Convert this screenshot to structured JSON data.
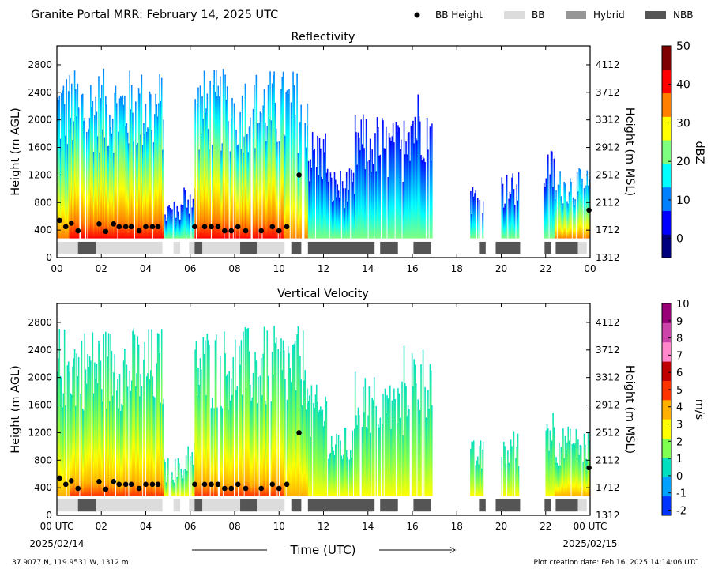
{
  "header": {
    "title": "Granite Portal MRR:  February 14, 2025 UTC",
    "legend": [
      {
        "label": "BB Height",
        "kind": "dot",
        "color": "#000000"
      },
      {
        "label": "BB",
        "kind": "box",
        "color": "#dcdcdc"
      },
      {
        "label": "Hybrid",
        "kind": "box",
        "color": "#969696"
      },
      {
        "label": "NBB",
        "kind": "box",
        "color": "#555555"
      }
    ]
  },
  "footer": {
    "location": "37.9077 N, 119.9531 W, 1312 m",
    "creation": "Plot creation date: Feb 16, 2025 14:14:06 UTC",
    "time_label": "Time (UTC)",
    "start_date": "2025/02/14",
    "end_date": "2025/02/15"
  },
  "chart_data": [
    {
      "type": "heatmap",
      "title": "Reflectivity",
      "ylabel": "Height (m AGL)",
      "ylabel_right": "Height (m MSL)",
      "colorbar_label": "dBZ",
      "colorbar_range": [
        -5,
        50
      ],
      "colorbar_ticks": [
        "0",
        "10",
        "20",
        "30",
        "40",
        "50"
      ],
      "colorbar_tick_values": [
        0,
        10,
        20,
        30,
        40,
        50
      ],
      "colors": [
        "#00007f",
        "#0000ff",
        "#007fff",
        "#00ffff",
        "#7fff7f",
        "#ffff00",
        "#ff7f00",
        "#ff0000",
        "#7f0000"
      ]
    },
    {
      "type": "heatmap",
      "title": "Vertical Velocity",
      "ylabel": "Height (m AGL)",
      "ylabel_right": "Height (m MSL)",
      "colorbar_label": "m/s",
      "colorbar_range": [
        -2.3,
        10
      ],
      "colorbar_ticks": [
        "-2",
        "-1",
        "0",
        "1",
        "2",
        "3",
        "4",
        "5",
        "6",
        "7",
        "8",
        "9",
        "10"
      ],
      "colorbar_tick_values": [
        -2,
        -1,
        0,
        1,
        2,
        3,
        4,
        5,
        6,
        7,
        8,
        9,
        10
      ],
      "colors": [
        "#0033ff",
        "#00a0ff",
        "#00e0c0",
        "#7fff4f",
        "#ffff00",
        "#ffb000",
        "#ff3300",
        "#c00000",
        "#ff88cc",
        "#cc44aa",
        "#990077"
      ]
    }
  ],
  "axes": {
    "x_range": [
      0,
      24
    ],
    "x_ticks": [
      "00",
      "02",
      "04",
      "06",
      "08",
      "10",
      "12",
      "14",
      "16",
      "18",
      "20",
      "22",
      "00"
    ],
    "x_ticks_lower": [
      "00 UTC",
      "02",
      "04",
      "06",
      "08",
      "10",
      "12",
      "14",
      "16",
      "18",
      "20",
      "22",
      "00 UTC"
    ],
    "y_range": [
      0,
      3075
    ],
    "y_ticks": [
      "0",
      "400",
      "800",
      "1200",
      "1600",
      "2000",
      "2400",
      "2800"
    ],
    "y_ticks_right": [
      "1312",
      "1712",
      "2112",
      "2512",
      "2912",
      "3312",
      "3712",
      "4112"
    ],
    "data_bottom_m": 280
  },
  "precip_segments": [
    {
      "start": 0.0,
      "end": 0.55,
      "height": 2750,
      "class": "mixed"
    },
    {
      "start": 0.55,
      "end": 4.8,
      "height": 2750,
      "class": "heavy"
    },
    {
      "start": 4.8,
      "end": 5.7,
      "height": 850,
      "class": "light"
    },
    {
      "start": 5.7,
      "end": 6.2,
      "height": 1100,
      "class": "light"
    },
    {
      "start": 6.2,
      "end": 10.2,
      "height": 2750,
      "class": "heavy"
    },
    {
      "start": 10.2,
      "end": 11.3,
      "height": 2750,
      "class": "mixed"
    },
    {
      "start": 11.3,
      "end": 12.2,
      "height": 1900,
      "class": "light"
    },
    {
      "start": 12.2,
      "end": 13.4,
      "height": 1300,
      "class": "light"
    },
    {
      "start": 13.4,
      "end": 14.7,
      "height": 2100,
      "class": "light"
    },
    {
      "start": 14.7,
      "end": 15.6,
      "height": 2000,
      "class": "light"
    },
    {
      "start": 15.6,
      "end": 16.9,
      "height": 2500,
      "class": "light"
    },
    {
      "start": 18.6,
      "end": 19.2,
      "height": 1100,
      "class": "light"
    },
    {
      "start": 20.0,
      "end": 20.8,
      "height": 1250,
      "class": "light"
    },
    {
      "start": 21.9,
      "end": 22.4,
      "height": 1600,
      "class": "light"
    },
    {
      "start": 22.4,
      "end": 24.0,
      "height": 1300,
      "class": "mixed"
    }
  ],
  "bb_height_points": [
    {
      "t": 0.12,
      "h": 540
    },
    {
      "t": 0.4,
      "h": 450
    },
    {
      "t": 0.65,
      "h": 500
    },
    {
      "t": 0.95,
      "h": 390
    },
    {
      "t": 1.9,
      "h": 490
    },
    {
      "t": 2.2,
      "h": 380
    },
    {
      "t": 2.55,
      "h": 490
    },
    {
      "t": 2.8,
      "h": 450
    },
    {
      "t": 3.1,
      "h": 450
    },
    {
      "t": 3.35,
      "h": 450
    },
    {
      "t": 3.7,
      "h": 390
    },
    {
      "t": 4.0,
      "h": 450
    },
    {
      "t": 4.3,
      "h": 450
    },
    {
      "t": 4.55,
      "h": 450
    },
    {
      "t": 6.2,
      "h": 450
    },
    {
      "t": 6.65,
      "h": 450
    },
    {
      "t": 6.95,
      "h": 450
    },
    {
      "t": 7.25,
      "h": 450
    },
    {
      "t": 7.55,
      "h": 390
    },
    {
      "t": 7.85,
      "h": 390
    },
    {
      "t": 8.15,
      "h": 450
    },
    {
      "t": 8.5,
      "h": 390
    },
    {
      "t": 9.2,
      "h": 390
    },
    {
      "t": 9.7,
      "h": 450
    },
    {
      "t": 10.0,
      "h": 390
    },
    {
      "t": 10.35,
      "h": 450
    },
    {
      "t": 10.9,
      "h": 1200
    },
    {
      "t": 23.95,
      "h": 690
    }
  ],
  "bb_type_bars": [
    {
      "start": 0.0,
      "end": 0.95,
      "type": "BB"
    },
    {
      "start": 0.95,
      "end": 1.75,
      "type": "NBB"
    },
    {
      "start": 1.75,
      "end": 4.75,
      "type": "BB"
    },
    {
      "start": 5.25,
      "end": 5.55,
      "type": "BB"
    },
    {
      "start": 5.95,
      "end": 6.2,
      "type": "BB"
    },
    {
      "start": 6.2,
      "end": 6.55,
      "type": "NBB"
    },
    {
      "start": 6.55,
      "end": 8.25,
      "type": "BB"
    },
    {
      "start": 8.25,
      "end": 9.0,
      "type": "NBB"
    },
    {
      "start": 9.0,
      "end": 10.25,
      "type": "BB"
    },
    {
      "start": 10.55,
      "end": 11.0,
      "type": "NBB"
    },
    {
      "start": 11.3,
      "end": 14.3,
      "type": "NBB"
    },
    {
      "start": 14.55,
      "end": 15.35,
      "type": "NBB"
    },
    {
      "start": 16.05,
      "end": 16.85,
      "type": "NBB"
    },
    {
      "start": 19.0,
      "end": 19.3,
      "type": "NBB"
    },
    {
      "start": 19.75,
      "end": 20.85,
      "type": "NBB"
    },
    {
      "start": 21.95,
      "end": 22.25,
      "type": "NBB"
    },
    {
      "start": 22.45,
      "end": 23.45,
      "type": "NBB"
    },
    {
      "start": 23.45,
      "end": 23.85,
      "type": "BB"
    }
  ]
}
